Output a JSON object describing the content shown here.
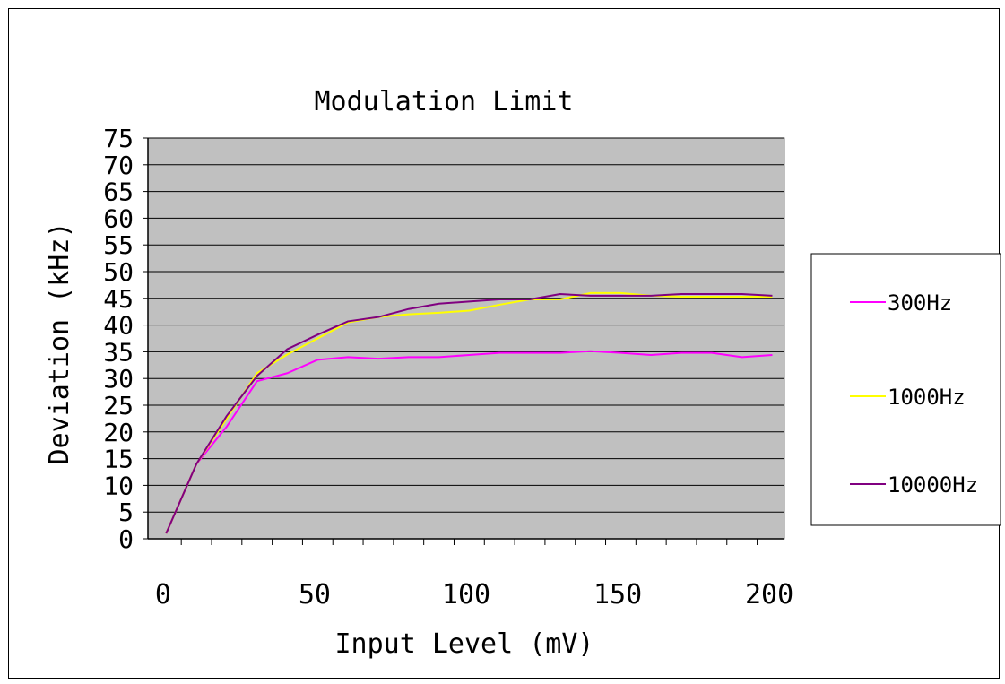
{
  "chart_data": {
    "type": "line",
    "title": "Modulation Limit",
    "xlabel": "Input Level (mV)",
    "ylabel": "Deviation (kHz)",
    "xlim": [
      -5,
      205
    ],
    "ylim": [
      0,
      75
    ],
    "x_ticks": [
      "0",
      "50",
      "100",
      "150",
      "200"
    ],
    "y_ticks": [
      "0",
      "5",
      "10",
      "15",
      "20",
      "25",
      "30",
      "35",
      "40",
      "45",
      "50",
      "55",
      "60",
      "65",
      "70",
      "75"
    ],
    "grid": true,
    "plot_background": "#c0c0c0",
    "legend_position": "right",
    "x": [
      1,
      11,
      21,
      31,
      41,
      51,
      61,
      71,
      81,
      91,
      101,
      111,
      121,
      131,
      141,
      151,
      161,
      171,
      181,
      191,
      201
    ],
    "series": [
      {
        "name": "300Hz",
        "color": "#ff00ff",
        "values": [
          1,
          14,
          21,
          29.5,
          31,
          33.5,
          34,
          33.7,
          34,
          34,
          34.4,
          34.8,
          34.8,
          34.8,
          35.1,
          34.8,
          34.4,
          34.8,
          34.8,
          34,
          34.4
        ]
      },
      {
        "name": "1000Hz",
        "color": "#ffff00",
        "values": [
          1,
          14,
          22.5,
          31,
          34.5,
          37.5,
          40.5,
          41.5,
          42,
          42.3,
          42.7,
          43.8,
          44.8,
          44.8,
          46,
          46,
          45.5,
          45.3,
          45.3,
          45.3,
          45.3
        ]
      },
      {
        "name": "10000Hz",
        "color": "#800080",
        "values": [
          1,
          14,
          23,
          30.5,
          35.5,
          38.2,
          40.7,
          41.5,
          43,
          44,
          44.4,
          44.8,
          44.8,
          45.8,
          45.5,
          45.5,
          45.5,
          45.8,
          45.8,
          45.8,
          45.5
        ]
      }
    ]
  }
}
